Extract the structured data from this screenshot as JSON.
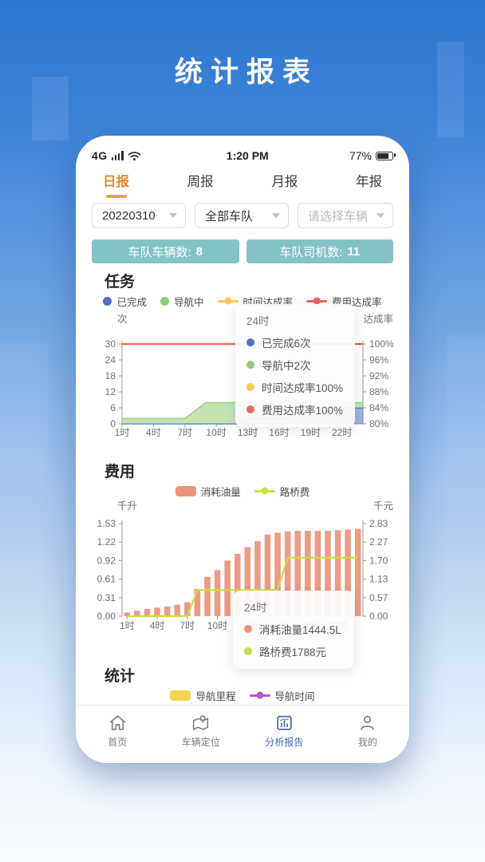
{
  "page_title": "统计报表",
  "status_bar": {
    "network": "4G",
    "time": "1:20 PM",
    "battery_percent": "77%"
  },
  "tabs": [
    {
      "label": "日报",
      "active": true
    },
    {
      "label": "周报",
      "active": false
    },
    {
      "label": "月报",
      "active": false
    },
    {
      "label": "年报",
      "active": false
    }
  ],
  "filters": [
    {
      "value": "20220310",
      "placeholder": false
    },
    {
      "value": "全部车队",
      "placeholder": false
    },
    {
      "value": "请选择车辆",
      "placeholder": true
    }
  ],
  "summary_badges": [
    {
      "label": "车队车辆数:",
      "value": "8"
    },
    {
      "label": "车队司机数:",
      "value": "11"
    }
  ],
  "sections": {
    "tasks": "任务",
    "cost": "费用",
    "stats": "统计"
  },
  "task_legend": [
    {
      "label": "已完成",
      "swatch": "dot",
      "color": "#5470c6"
    },
    {
      "label": "导航中",
      "swatch": "dot",
      "color": "#91cc75"
    },
    {
      "label": "时间达成率",
      "swatch": "line-dot",
      "color": "#fac858"
    },
    {
      "label": "费用达成率",
      "swatch": "line-dot",
      "color": "#ee6666"
    }
  ],
  "cost_legend": [
    {
      "label": "消耗油量",
      "swatch": "bar",
      "color": "#ee9177"
    },
    {
      "label": "路桥费",
      "swatch": "line-dot",
      "color": "#c9de45"
    }
  ],
  "stats_legend": [
    {
      "label": "导航里程",
      "swatch": "bar",
      "color": "#f3d44e"
    },
    {
      "label": "导航时间",
      "swatch": "line-dot",
      "color": "#b15bc4"
    }
  ],
  "task_tooltip": {
    "title": "24时",
    "rows": [
      {
        "label": "已完成6次",
        "color": "#5470c6"
      },
      {
        "label": "导航中2次",
        "color": "#91cc75"
      },
      {
        "label": "时间达成率100%",
        "color": "#fac858"
      },
      {
        "label": "费用达成率100%",
        "color": "#ee6666"
      }
    ]
  },
  "cost_tooltip": {
    "title": "24时",
    "rows": [
      {
        "label": "消耗油量1444.5L",
        "color": "#ee9177"
      },
      {
        "label": "路桥费1788元",
        "color": "#c9de45"
      }
    ]
  },
  "bottom_nav": [
    {
      "label": "首页",
      "icon": "home-icon",
      "active": false
    },
    {
      "label": "车辆定位",
      "icon": "vehicle-location-icon",
      "active": false
    },
    {
      "label": "分析报告",
      "icon": "analysis-report-icon",
      "active": true
    },
    {
      "label": "我的",
      "icon": "profile-icon",
      "active": false
    }
  ],
  "colors": {
    "accent_orange": "#e2882b",
    "badge_teal": "#84c3c5",
    "nav_active_blue": "#3f64ae"
  },
  "chart_data": [
    {
      "id": "tasks",
      "type": "area",
      "title": "任务",
      "categories": [
        "1时",
        "2时",
        "3时",
        "4时",
        "5时",
        "6时",
        "7时",
        "8时",
        "9时",
        "10时",
        "11时",
        "12时",
        "13时",
        "14时",
        "15时",
        "16时",
        "17时",
        "18时",
        "19时",
        "20时",
        "21时",
        "22时",
        "23时",
        "24时"
      ],
      "x_tick_labels": [
        "1时",
        "4时",
        "7时",
        "10时",
        "13时",
        "16时",
        "19时",
        "22时"
      ],
      "y_left": {
        "name": "次",
        "ticks": [
          "30",
          "24",
          "18",
          "12",
          "6",
          "0"
        ],
        "min": 0,
        "max": 30
      },
      "y_right": {
        "name": "达成率",
        "ticks": [
          "100%",
          "96%",
          "92%",
          "88%",
          "84%",
          "80%"
        ],
        "min": 80,
        "max": 100
      },
      "series": [
        {
          "name": "已完成",
          "type": "area",
          "axis": "left",
          "stack": true,
          "color": "#5470c6",
          "values": [
            0,
            0,
            0,
            0,
            0,
            0,
            0,
            0,
            0,
            0,
            0,
            0,
            2,
            2,
            2,
            2,
            2,
            4,
            6,
            6,
            6,
            6,
            6,
            6
          ]
        },
        {
          "name": "导航中",
          "type": "area",
          "axis": "left",
          "stack": true,
          "color": "#91cc75",
          "values": [
            2,
            2,
            2,
            2,
            2,
            2,
            2,
            5,
            8,
            8,
            8,
            8,
            6,
            6,
            6,
            6,
            6,
            4,
            2,
            2,
            2,
            2,
            2,
            2
          ]
        },
        {
          "name": "时间达成率",
          "type": "line",
          "axis": "right",
          "color": "#fac858",
          "values": [
            100,
            100,
            100,
            100,
            100,
            100,
            100,
            100,
            100,
            100,
            100,
            100,
            100,
            100,
            100,
            100,
            100,
            100,
            100,
            100,
            100,
            100,
            100,
            100
          ]
        },
        {
          "name": "费用达成率",
          "type": "line",
          "axis": "right",
          "color": "#ee6666",
          "values": [
            100,
            100,
            100,
            100,
            100,
            100,
            100,
            100,
            100,
            100,
            100,
            100,
            100,
            100,
            100,
            100,
            100,
            100,
            100,
            100,
            100,
            100,
            100,
            100
          ]
        }
      ]
    },
    {
      "id": "cost",
      "type": "bar-line",
      "title": "费用",
      "categories": [
        "1时",
        "2时",
        "3时",
        "4时",
        "5时",
        "6时",
        "7时",
        "8时",
        "9时",
        "10时",
        "11时",
        "12时",
        "13时",
        "14时",
        "15时",
        "16时",
        "17时",
        "18时",
        "19时",
        "20时",
        "21时",
        "22时",
        "23时",
        "24时"
      ],
      "x_tick_labels": [
        "1时",
        "4时",
        "7时",
        "10时",
        "13时",
        "16时",
        "19时",
        "22时"
      ],
      "y_left": {
        "name": "千升",
        "ticks": [
          "1.53",
          "1.22",
          "0.92",
          "0.61",
          "0.31",
          "0.00"
        ],
        "min": 0,
        "max": 1.53
      },
      "y_right": {
        "name": "千元",
        "ticks": [
          "2.83",
          "2.27",
          "1.70",
          "1.13",
          "0.57",
          "0.00"
        ],
        "min": 0,
        "max": 2.83
      },
      "series": [
        {
          "name": "消耗油量",
          "type": "bar",
          "axis": "left",
          "color": "#ee9177",
          "values": [
            0.06,
            0.09,
            0.12,
            0.14,
            0.16,
            0.19,
            0.23,
            0.45,
            0.65,
            0.76,
            0.92,
            1.03,
            1.14,
            1.24,
            1.35,
            1.38,
            1.4,
            1.41,
            1.41,
            1.41,
            1.41,
            1.42,
            1.43,
            1.4445
          ]
        },
        {
          "name": "路桥费",
          "type": "line",
          "axis": "right",
          "color": "#c9de45",
          "values": [
            0,
            0,
            0,
            0,
            0,
            0,
            0,
            0.8,
            0.8,
            0.8,
            0.8,
            0.8,
            0.8,
            0.8,
            0.8,
            0.8,
            1.788,
            1.788,
            1.788,
            1.788,
            1.788,
            1.788,
            1.788,
            1.788
          ]
        }
      ]
    }
  ]
}
